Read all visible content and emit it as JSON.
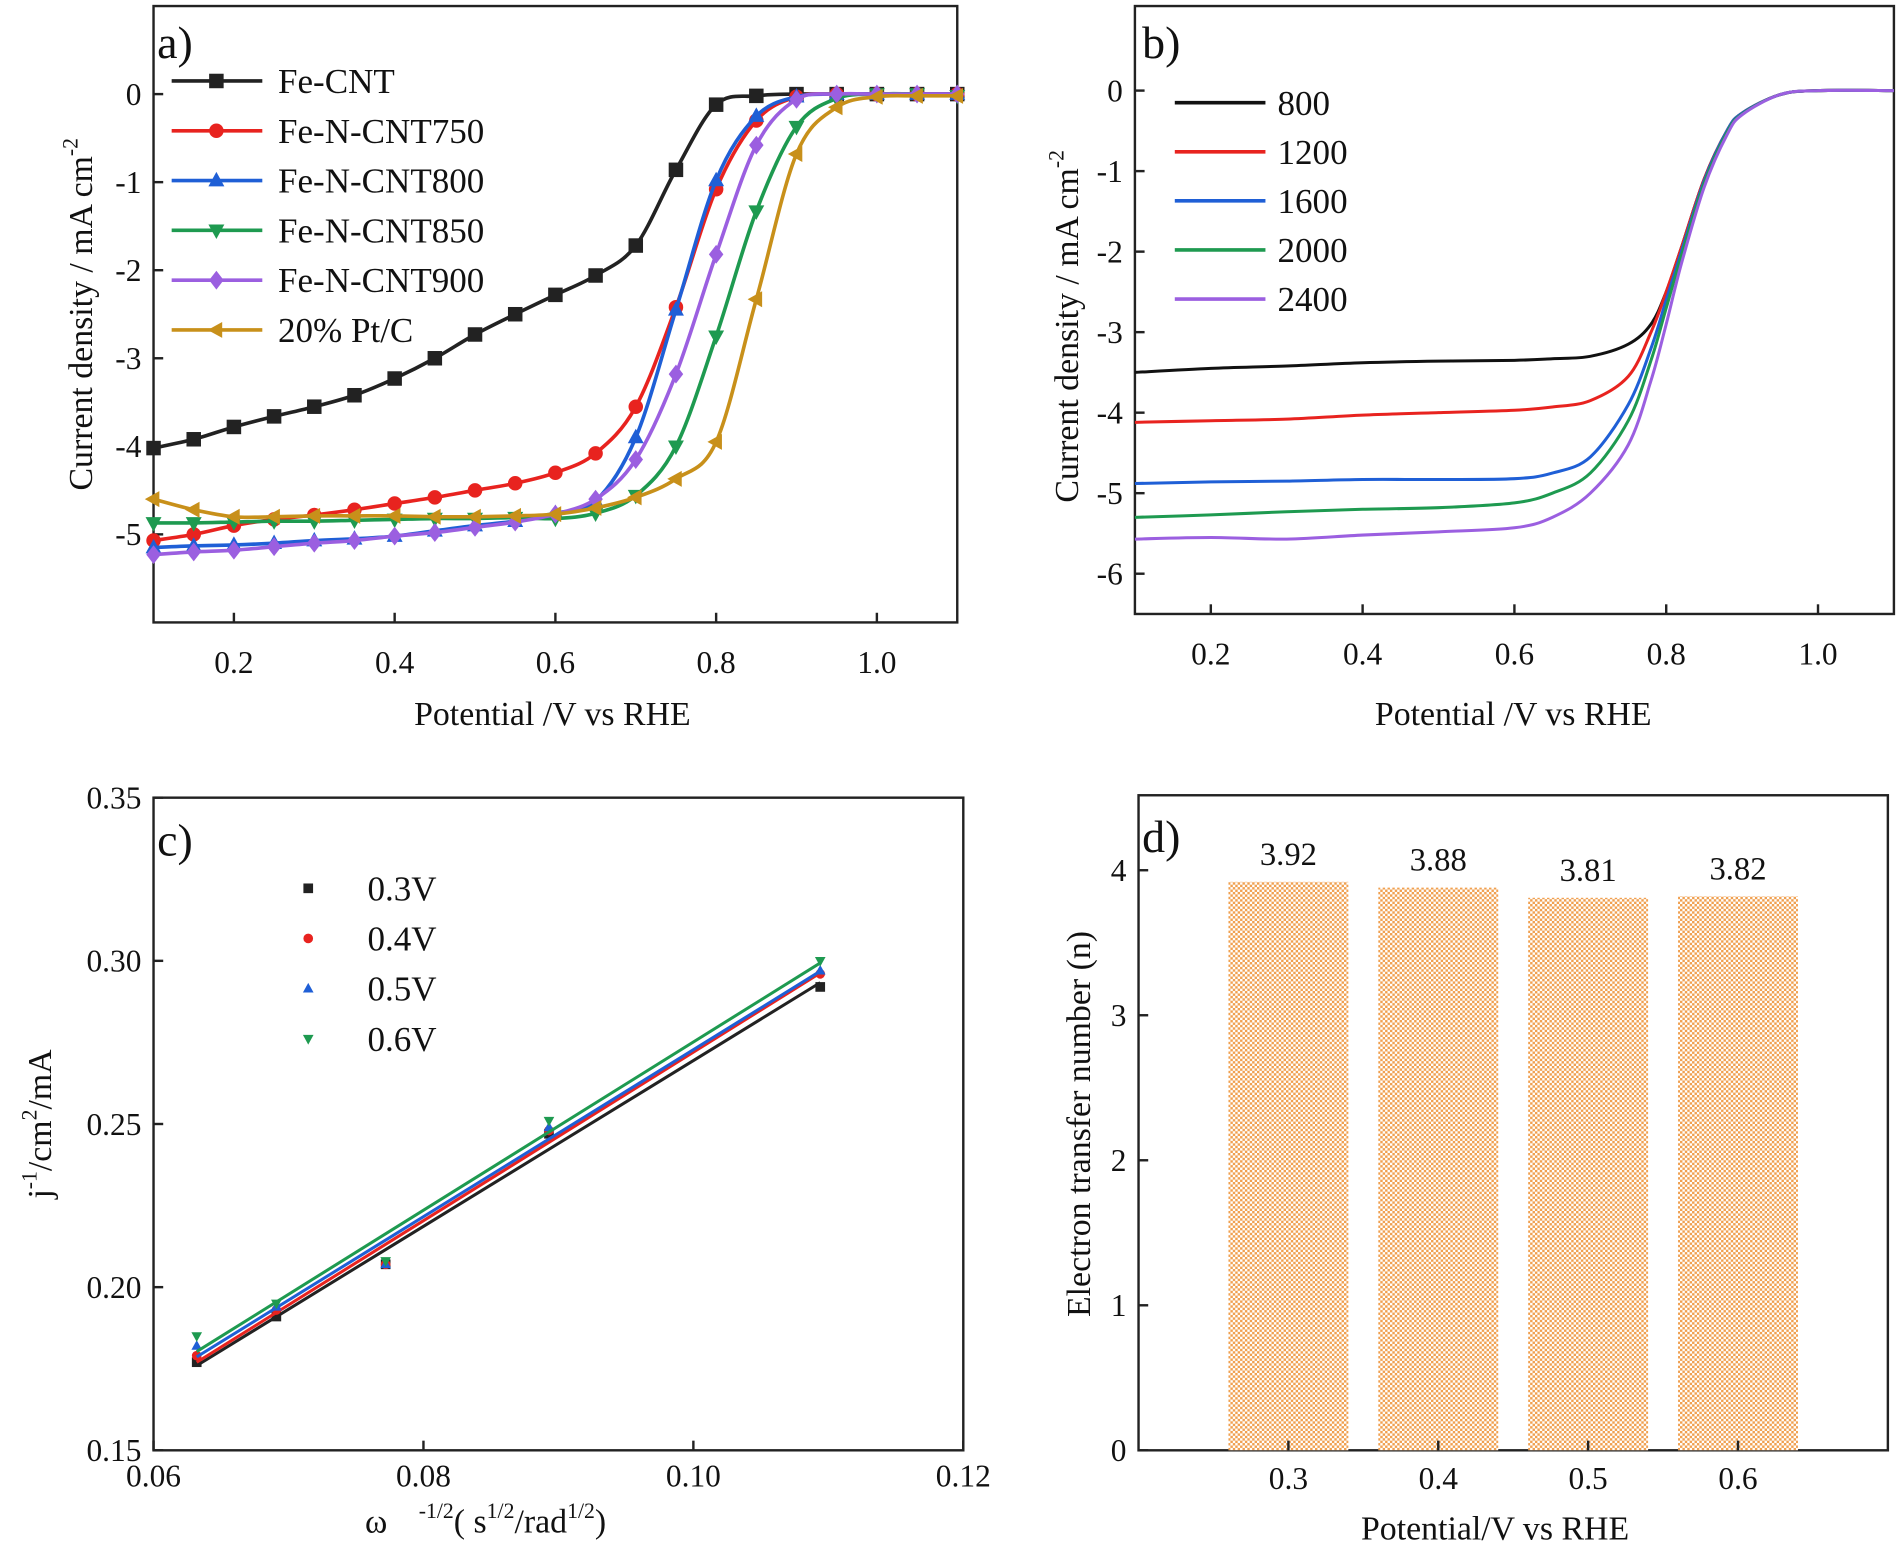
{
  "chart_data": [
    {
      "panel": "a)",
      "type": "line",
      "xlabel": "Potential /V vs RHE",
      "ylabel": {
        "main": "Current density / mA cm",
        "sup": "-2"
      },
      "xlim": [
        0.1,
        1.1
      ],
      "ylim": [
        -6,
        1
      ],
      "xticks": [
        "0.2",
        "0.4",
        "0.6",
        "0.8",
        "1.0"
      ],
      "yticks": [
        "0",
        "-1",
        "-2",
        "-3",
        "-4",
        "-5"
      ],
      "legend_position": "top-left",
      "x": [
        0.1,
        0.15,
        0.2,
        0.25,
        0.3,
        0.35,
        0.4,
        0.45,
        0.5,
        0.55,
        0.6,
        0.65,
        0.7,
        0.75,
        0.8,
        0.85,
        0.9,
        0.95,
        1.0,
        1.05,
        1.1
      ],
      "series": [
        {
          "name": "Fe-CNT",
          "color": "#222222",
          "marker": "square",
          "values": [
            -4.02,
            -3.92,
            -3.78,
            -3.66,
            -3.55,
            -3.42,
            -3.23,
            -3.0,
            -2.73,
            -2.5,
            -2.28,
            -2.06,
            -1.72,
            -0.86,
            -0.12,
            -0.02,
            0,
            0,
            0,
            0,
            0
          ]
        },
        {
          "name": "Fe-N-CNT750",
          "color": "#e8231f",
          "marker": "circle",
          "values": [
            -5.07,
            -5.0,
            -4.9,
            -4.83,
            -4.78,
            -4.72,
            -4.65,
            -4.58,
            -4.5,
            -4.42,
            -4.3,
            -4.08,
            -3.55,
            -2.42,
            -1.08,
            -0.3,
            -0.03,
            0,
            0,
            0,
            0
          ]
        },
        {
          "name": "Fe-N-CNT800",
          "color": "#1f5fd6",
          "marker": "triangle-up",
          "values": [
            -5.15,
            -5.13,
            -5.12,
            -5.1,
            -5.07,
            -5.05,
            -5.02,
            -4.96,
            -4.9,
            -4.85,
            -4.76,
            -4.62,
            -3.9,
            -2.45,
            -0.98,
            -0.25,
            -0.03,
            0,
            0,
            0,
            0
          ]
        },
        {
          "name": "Fe-N-CNT850",
          "color": "#1e9a50",
          "marker": "triangle-down",
          "values": [
            -4.87,
            -4.87,
            -4.86,
            -4.85,
            -4.85,
            -4.84,
            -4.83,
            -4.82,
            -4.82,
            -4.81,
            -4.82,
            -4.76,
            -4.56,
            -4.0,
            -2.75,
            -1.33,
            -0.37,
            -0.05,
            0,
            0,
            -0.02
          ]
        },
        {
          "name": "Fe-N-CNT900",
          "color": "#9b5fe0",
          "marker": "diamond",
          "values": [
            -5.23,
            -5.2,
            -5.18,
            -5.14,
            -5.1,
            -5.07,
            -5.02,
            -4.98,
            -4.92,
            -4.86,
            -4.77,
            -4.6,
            -4.15,
            -3.18,
            -1.82,
            -0.58,
            -0.06,
            0,
            0,
            0,
            0
          ]
        },
        {
          "name": "20% Pt/C",
          "color": "#c8901a",
          "marker": "triangle-left",
          "values": [
            -4.6,
            -4.72,
            -4.8,
            -4.8,
            -4.79,
            -4.79,
            -4.79,
            -4.8,
            -4.8,
            -4.79,
            -4.77,
            -4.7,
            -4.58,
            -4.37,
            -3.95,
            -2.33,
            -0.68,
            -0.15,
            -0.03,
            -0.02,
            -0.02
          ]
        }
      ]
    },
    {
      "panel": "b)",
      "type": "line",
      "xlabel": "Potential /V vs RHE",
      "ylabel": {
        "main": "Current density / mA cm",
        "sup": "-2"
      },
      "xlim": [
        0.1,
        1.1
      ],
      "ylim": [
        -6.5,
        1.05
      ],
      "xticks": [
        "0.2",
        "0.4",
        "0.6",
        "0.8",
        "1.0"
      ],
      "yticks": [
        "0",
        "-1",
        "-2",
        "-3",
        "-4",
        "-5",
        "-6"
      ],
      "legend_position": "top-left",
      "x": [
        0.1,
        0.2,
        0.3,
        0.4,
        0.5,
        0.6,
        0.65,
        0.7,
        0.75,
        0.78,
        0.8,
        0.82,
        0.85,
        0.88,
        0.9,
        0.95,
        1.0,
        1.1
      ],
      "series": [
        {
          "name": "800",
          "color": "#111111",
          "values": [
            -3.5,
            -3.45,
            -3.42,
            -3.38,
            -3.36,
            -3.35,
            -3.33,
            -3.3,
            -3.15,
            -2.9,
            -2.5,
            -1.95,
            -1.1,
            -0.5,
            -0.28,
            -0.05,
            0,
            0
          ]
        },
        {
          "name": "1200",
          "color": "#e8231f",
          "values": [
            -4.12,
            -4.1,
            -4.08,
            -4.03,
            -4.0,
            -3.97,
            -3.93,
            -3.85,
            -3.55,
            -3.0,
            -2.5,
            -1.95,
            -1.1,
            -0.5,
            -0.28,
            -0.05,
            0,
            0
          ]
        },
        {
          "name": "1600",
          "color": "#1f5fd6",
          "values": [
            -4.88,
            -4.86,
            -4.85,
            -4.83,
            -4.83,
            -4.82,
            -4.75,
            -4.55,
            -3.9,
            -3.2,
            -2.6,
            -2.0,
            -1.12,
            -0.5,
            -0.28,
            -0.05,
            0,
            0
          ]
        },
        {
          "name": "2000",
          "color": "#1e9a50",
          "values": [
            -5.3,
            -5.27,
            -5.23,
            -5.2,
            -5.18,
            -5.12,
            -5.0,
            -4.75,
            -4.1,
            -3.35,
            -2.7,
            -2.05,
            -1.15,
            -0.52,
            -0.29,
            -0.05,
            0,
            0
          ]
        },
        {
          "name": "2400",
          "color": "#9b5fe0",
          "values": [
            -5.57,
            -5.55,
            -5.57,
            -5.52,
            -5.48,
            -5.43,
            -5.3,
            -5.0,
            -4.4,
            -3.6,
            -2.9,
            -2.15,
            -1.2,
            -0.55,
            -0.3,
            -0.05,
            0,
            0
          ]
        }
      ]
    },
    {
      "panel": "c)",
      "type": "scatter",
      "xlabel": {
        "omega": "ω",
        "exp": "-1/2",
        "open": "( s",
        "sup1": "1/2",
        "mid": "/rad",
        "sup2": "1/2",
        "close": ")"
      },
      "ylabel": {
        "j": "j",
        "sup1": "-1",
        "mid": "/cm",
        "sup2": "2",
        "end": "/mA"
      },
      "xlim": [
        0.06,
        0.12
      ],
      "ylim": [
        0.15,
        0.35
      ],
      "xticks": [
        "0.06",
        "0.08",
        "0.10",
        "0.12"
      ],
      "yticks": [
        "0.15",
        "0.20",
        "0.25",
        "0.30",
        "0.35"
      ],
      "legend_position": "top-left",
      "fit": "linear",
      "x": [
        0.0632,
        0.0691,
        0.0772,
        0.0893,
        0.1094
      ],
      "series": [
        {
          "name": "0.3V",
          "color": "#222222",
          "marker": "square",
          "values": [
            0.177,
            0.191,
            0.207,
            0.247,
            0.292
          ]
        },
        {
          "name": "0.4V",
          "color": "#e8231f",
          "marker": "circle",
          "values": [
            0.179,
            0.193,
            0.207,
            0.248,
            0.296
          ]
        },
        {
          "name": "0.5V",
          "color": "#1f5fd6",
          "marker": "triangle-up",
          "values": [
            0.182,
            0.194,
            0.207,
            0.249,
            0.297
          ]
        },
        {
          "name": "0.6V",
          "color": "#1e9a50",
          "marker": "triangle-down",
          "values": [
            0.185,
            0.195,
            0.208,
            0.251,
            0.3
          ]
        }
      ]
    },
    {
      "panel": "d)",
      "type": "bar",
      "xlabel": "Potential/V vs RHE",
      "ylabel": "Electron transfer number (n)",
      "categories": [
        "0.3",
        "0.4",
        "0.5",
        "0.6"
      ],
      "category_values": [
        0.3,
        0.4,
        0.5,
        0.6
      ],
      "values": [
        3.92,
        3.88,
        3.81,
        3.82
      ],
      "data_labels": [
        "3.92",
        "3.88",
        "3.81",
        "3.82"
      ],
      "xlim": [
        0.2,
        0.7
      ],
      "ylim": [
        0,
        4.517
      ],
      "yticks": [
        "0",
        "1",
        "2",
        "3",
        "4"
      ],
      "bar_color": "#f0a050"
    }
  ]
}
